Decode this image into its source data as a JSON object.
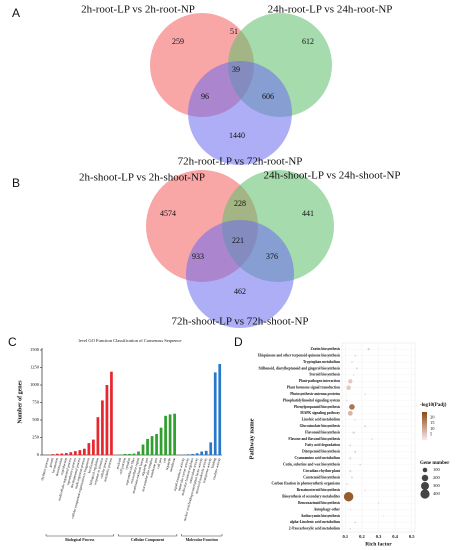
{
  "chart_data": [
    {
      "type": "venn",
      "panel": "A",
      "sets": [
        {
          "name": "2h-root-LP vs 2h-root-NP",
          "color": "#f25c5c"
        },
        {
          "name": "24h-root-LP vs 24h-root-NP",
          "color": "#5cbf6a"
        },
        {
          "name": "72h-root-LP vs 72h-root-NP",
          "color": "#6b6bef"
        }
      ],
      "regions": [
        {
          "in": [
            0
          ],
          "value": 259
        },
        {
          "in": [
            0,
            1
          ],
          "value": 51
        },
        {
          "in": [
            1
          ],
          "value": 612
        },
        {
          "in": [
            0,
            2
          ],
          "value": 96
        },
        {
          "in": [
            0,
            1,
            2
          ],
          "value": 39
        },
        {
          "in": [
            1,
            2
          ],
          "value": 606
        },
        {
          "in": [
            2
          ],
          "value": 1440
        }
      ]
    },
    {
      "type": "venn",
      "panel": "B",
      "sets": [
        {
          "name": "2h-shoot-LP vs 2h-shoot-NP",
          "color": "#f25c5c"
        },
        {
          "name": "24h-shoot-LP vs 24h-shoot-NP",
          "color": "#5cbf6a"
        },
        {
          "name": "72h-shoot-LP vs 72h-shoot-NP",
          "color": "#6b6bef"
        }
      ],
      "regions": [
        {
          "in": [
            0
          ],
          "value": 4574
        },
        {
          "in": [
            0,
            1
          ],
          "value": 228
        },
        {
          "in": [
            1
          ],
          "value": 441
        },
        {
          "in": [
            0,
            2
          ],
          "value": 933
        },
        {
          "in": [
            0,
            1,
            2
          ],
          "value": 221
        },
        {
          "in": [
            1,
            2
          ],
          "value": 376
        },
        {
          "in": [
            2
          ],
          "value": 462
        }
      ]
    },
    {
      "type": "bar",
      "panel": "C",
      "title": "level GO Function Classification of Consensus Sequence",
      "ylabel": "Number of genes",
      "ylim": [
        0,
        1500
      ],
      "yticks": [
        0,
        250,
        500,
        750,
        1000,
        1250,
        1500
      ],
      "series": [
        {
          "name": "Biological Process",
          "color": "#e8262b",
          "categories": [
            "rhythmic process",
            "growth",
            "locomotion",
            "detoxification",
            "reproduction",
            "multicellular organismal process",
            "reproductive process",
            "developmental process",
            "multi-organism process",
            "cellular component organization or biogenesis",
            "localization",
            "biological regulation",
            "response to stimulus",
            "cellular process",
            "metabolic process"
          ],
          "values": [
            3,
            12,
            18,
            22,
            28,
            40,
            55,
            70,
            90,
            170,
            220,
            540,
            780,
            1000,
            1190
          ]
        },
        {
          "name": "Cellular Component",
          "color": "#2ea02e",
          "categories": [
            "nucleoid",
            "cell junction",
            "symplast",
            "supramolecular fiber",
            "extracellular region",
            "membrane-enclosed lumen",
            "organelle part",
            "macromolecular complex",
            "membrane part",
            "cell part",
            "cell",
            "organelle",
            "membrane"
          ],
          "values": [
            5,
            15,
            15,
            20,
            50,
            150,
            230,
            270,
            300,
            390,
            560,
            580,
            590
          ]
        },
        {
          "name": "Molecular Function",
          "color": "#2878c8",
          "categories": [
            "signal transducer activity",
            "molecular carrier activity",
            "molecular function regulator",
            "antioxidant activity",
            "nucleic acid binding transcription factor activity",
            "structural molecule activity",
            "transporter activity",
            "binding",
            "catalytic activity"
          ],
          "values": [
            5,
            10,
            15,
            25,
            50,
            60,
            180,
            1180,
            1300
          ]
        }
      ]
    },
    {
      "type": "bubble",
      "panel": "D",
      "xlabel": "Rich factor",
      "ylabel": "Pathway name",
      "xlim": [
        0.08,
        0.52
      ],
      "xticks": [
        0.1,
        0.2,
        0.3,
        0.4,
        0.5
      ],
      "categories": [
        "Zeatin biosynthesis",
        "Ubiquinone and other terpenoid-quinone biosynthesis",
        "Tryptophan metabolism",
        "Stilbenoid, diarylheptanoid and gingerol biosynthesis",
        "Steroid biosynthesis",
        "Plant-pathogen interaction",
        "Plant hormone signal transduction",
        "Photosynthesis-antenna proteins",
        "Phosphatidylinositol signaling system",
        "Phenylpropanoid biosynthesis",
        "MAPK signaling pathway",
        "Linoleic acid metabolism",
        "Glucosinolate biosynthesis",
        "Flavonoid biosynthesis",
        "Flavone and flavonol biosynthesis",
        "Fatty acid degradation",
        "Diterpenoid biosynthesis",
        "Cyanoamino acid metabolism",
        "Cutin, suberine and wax biosynthesis",
        "Circadian rhythm-plant",
        "Carotenoid biosynthesis",
        "Carbon fixation in photosynthetic organisms",
        "Brassinosteroid biosynthesis",
        "Biosynthesis of secondary metabolites",
        "Benzoxazinoid biosynthesis",
        "Autophagy-other",
        "Anthocyanin biosynthesis",
        "alpha-Linolenic acid metabolism",
        "2-Oxocarboxylic acid metabolism"
      ],
      "values": [
        0.24,
        0.16,
        0.14,
        0.17,
        0.15,
        0.13,
        0.12,
        0.22,
        0.11,
        0.14,
        0.13,
        0.16,
        0.22,
        0.15,
        0.26,
        0.13,
        0.16,
        0.13,
        0.19,
        0.13,
        0.14,
        0.11,
        0.22,
        0.12,
        0.3,
        0.13,
        0.33,
        0.16,
        0.13
      ],
      "sizes": [
        20,
        15,
        15,
        15,
        12,
        90,
        100,
        10,
        20,
        150,
        110,
        12,
        15,
        25,
        10,
        20,
        20,
        25,
        15,
        25,
        20,
        20,
        8,
        420,
        8,
        15,
        5,
        15,
        12
      ],
      "colors": [
        6,
        4,
        3,
        4,
        3,
        5,
        5,
        4,
        2,
        18,
        8,
        3,
        5,
        4,
        5,
        3,
        4,
        3,
        4,
        3,
        3,
        2,
        4,
        22,
        5,
        2,
        4,
        4,
        3
      ],
      "color_title": "-log10(Padj)",
      "colorlim": [
        0,
        25
      ],
      "color_ticks": [
        20,
        15,
        10,
        5
      ],
      "color_low": "#fbe8ee",
      "color_high": "#8a4a12",
      "size_title": "Gene number",
      "size_ticks": [
        100,
        200,
        300,
        400
      ]
    }
  ]
}
